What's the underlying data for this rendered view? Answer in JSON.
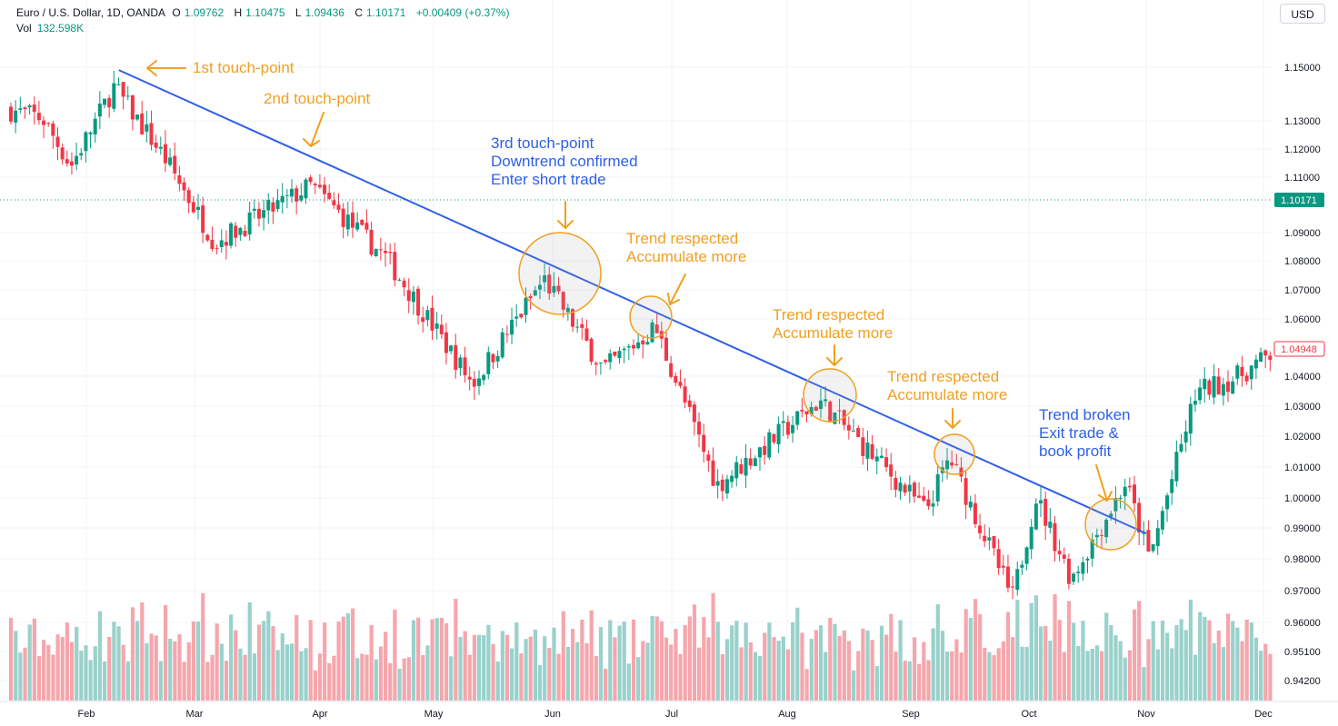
{
  "header": {
    "symbol": "Euro / U.S. Dollar, 1D, OANDA",
    "o_label": "O",
    "o_value": "1.09762",
    "h_label": "H",
    "h_value": "1.10475",
    "l_label": "L",
    "l_value": "1.09436",
    "c_label": "C",
    "c_value": "1.10171",
    "change": "+0.00409 (+0.37%)",
    "vol_label": "Vol",
    "vol_value": "132.598K"
  },
  "currency_button": "USD",
  "price_tags": {
    "current": "1.10171",
    "last": "1.04948"
  },
  "annotations": {
    "a1": [
      "1st touch-point"
    ],
    "a2": [
      "2nd touch-point"
    ],
    "a3": [
      "3rd touch-point",
      "Downtrend confirmed",
      "Enter short trade"
    ],
    "a4": [
      "Trend respected",
      "Accumulate more"
    ],
    "a5": [
      "Trend respected",
      "Accumulate more"
    ],
    "a6": [
      "Trend respected",
      "Accumulate more"
    ],
    "a7": [
      "Trend broken",
      "Exit trade &",
      "book profit"
    ]
  },
  "colors": {
    "up": "#089981",
    "down": "#f23645",
    "vol_up": "#99d1cb",
    "vol_down": "#f5a6ac",
    "trendline": "#2f5fe8",
    "annotation": "#f0a020",
    "annotation_blue": "#2f5fe8"
  },
  "chart_data": {
    "type": "candlestick",
    "x_ticks": [
      "Feb",
      "Mar",
      "Apr",
      "May",
      "Jun",
      "Jul",
      "Aug",
      "Sep",
      "Oct",
      "Nov",
      "Dec"
    ],
    "y_ticks": [
      "1.15000",
      "1.13000",
      "1.12000",
      "1.11000",
      "1.09000",
      "1.08000",
      "1.07000",
      "1.06000",
      "1.04000",
      "1.03000",
      "1.02000",
      "1.01000",
      "1.00000",
      "0.99000",
      "0.98000",
      "0.97000",
      "0.96000",
      "0.95100",
      "0.94200"
    ],
    "y_range": [
      0.94,
      1.157
    ],
    "key_closes": [
      {
        "date": "Jan 1",
        "close": 1.138
      },
      {
        "date": "Jan 20",
        "close": 1.132
      },
      {
        "date": "Jan 28",
        "close": 1.115
      },
      {
        "date": "Feb 10",
        "close": 1.143
      },
      {
        "date": "Feb 24",
        "close": 1.118
      },
      {
        "date": "Mar 7",
        "close": 1.088
      },
      {
        "date": "Mar 30",
        "close": 1.108
      },
      {
        "date": "Apr 20",
        "close": 1.082
      },
      {
        "date": "May 12",
        "close": 1.038
      },
      {
        "date": "May 30",
        "close": 1.075
      },
      {
        "date": "Jun 15",
        "close": 1.043
      },
      {
        "date": "Jun 28",
        "close": 1.058
      },
      {
        "date": "Jul 14",
        "close": 1.002
      },
      {
        "date": "Aug 10",
        "close": 1.032
      },
      {
        "date": "Sep 6",
        "close": 0.993
      },
      {
        "date": "Sep 12",
        "close": 1.012
      },
      {
        "date": "Sep 28",
        "close": 0.962
      },
      {
        "date": "Oct 4",
        "close": 0.998
      },
      {
        "date": "Oct 13",
        "close": 0.969
      },
      {
        "date": "Oct 27",
        "close": 1.003
      },
      {
        "date": "Nov 3",
        "close": 0.976
      },
      {
        "date": "Nov 15",
        "close": 1.035
      },
      {
        "date": "Nov 25",
        "close": 1.04
      },
      {
        "date": "Dec 5",
        "close": 1.049
      }
    ],
    "trendline": {
      "start": {
        "date": "Feb 10",
        "price": 1.149
      },
      "end": {
        "date": "Oct 31",
        "price": 0.985
      }
    }
  }
}
